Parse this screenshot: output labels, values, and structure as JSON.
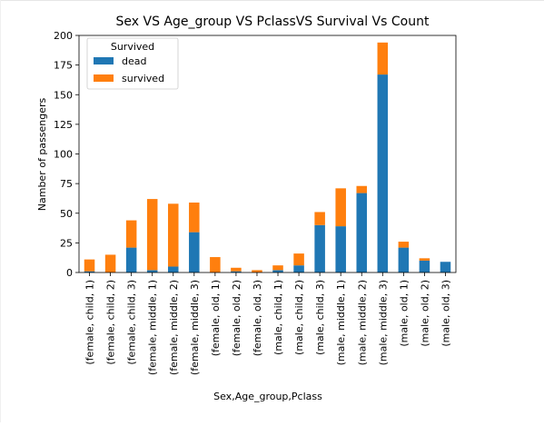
{
  "chart_data": {
    "type": "bar",
    "stacked": true,
    "title": "Sex VS Age_group VS PclassVS Survival Vs Count",
    "xlabel": "Sex,Age_group,Pclass",
    "ylabel": "Namber of passengers",
    "ylim": [
      0,
      200
    ],
    "yticks": [
      "0",
      "25",
      "50",
      "75",
      "100",
      "125",
      "150",
      "175",
      "200"
    ],
    "grid": false,
    "legend": {
      "title": "Survived",
      "placement": "top-left"
    },
    "categories": [
      "(female, child, 1)",
      "(female, child, 2)",
      "(female, child, 3)",
      "(female, middle, 1)",
      "(female, middle, 2)",
      "(female, middle, 3)",
      "(female, old, 1)",
      "(female, old, 2)",
      "(female, old, 3)",
      "(male, child, 1)",
      "(male, child, 2)",
      "(male, child, 3)",
      "(male, middle, 1)",
      "(male, middle, 2)",
      "(male, middle, 3)",
      "(male, old, 1)",
      "(male, old, 2)",
      "(male, old, 3)"
    ],
    "series": [
      {
        "name": "dead",
        "color": "#1f77b4",
        "values": [
          1,
          0,
          21,
          2,
          5,
          34,
          0,
          1,
          0,
          2,
          6,
          40,
          39,
          67,
          167,
          21,
          10,
          9
        ]
      },
      {
        "name": "survived",
        "color": "#ff7f0e",
        "values": [
          10,
          15,
          23,
          60,
          53,
          25,
          13,
          3,
          2,
          4,
          10,
          11,
          32,
          6,
          27,
          5,
          2,
          0
        ]
      }
    ]
  }
}
